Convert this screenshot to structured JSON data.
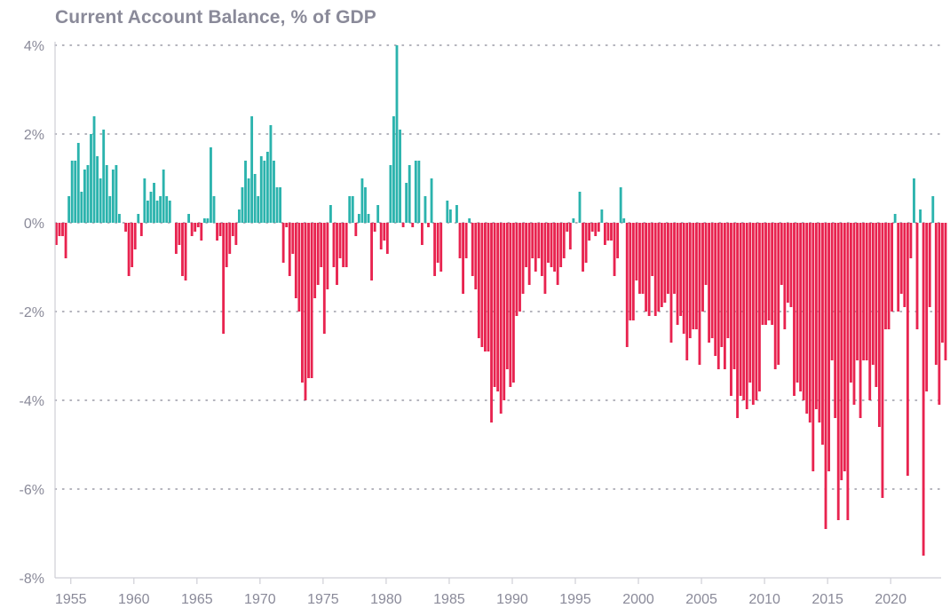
{
  "chart_data": {
    "type": "bar",
    "title": "Current Account Balance, % of GDP",
    "xlabel": "",
    "ylabel": "",
    "x_tick_labels": [
      "1955",
      "1960",
      "1965",
      "1970",
      "1975",
      "1980",
      "1985",
      "1990",
      "1995",
      "2000",
      "2005",
      "2010",
      "2015",
      "2020"
    ],
    "y_tick_labels": [
      "4%",
      "2%",
      "0%",
      "-2%",
      "-4%",
      "-6%",
      "-8%"
    ],
    "y_ticks": [
      4,
      2,
      0,
      -2,
      -4,
      -6,
      -8
    ],
    "ylim": [
      -8,
      4
    ],
    "xlim": [
      1953.75,
      2024.0
    ],
    "grid": "horizontal dotted",
    "legend": "none",
    "colors": {
      "positive": "#2bb3ad",
      "negative": "#e8234f",
      "axis": "#cfcfd6",
      "text": "#8a8a99"
    },
    "series": [
      {
        "frequency": "quarterly",
        "start": "1953 Q4",
        "values": [
          -0.5,
          -0.3,
          -0.3,
          -0.8,
          0.6,
          1.4,
          1.4,
          1.8,
          0.7,
          1.2,
          1.3,
          2.0,
          2.4,
          1.5,
          1.0,
          2.1,
          1.3,
          0.6,
          1.2,
          1.3,
          0.2,
          0,
          -0.2,
          -1.2,
          -1.0,
          -0.6,
          0.2,
          -0.3,
          1.0,
          0.5,
          0.7,
          0.9,
          0.5,
          0.6,
          1.2,
          0.6,
          0.5,
          0,
          -0.7,
          -0.5,
          -1.2,
          -1.3,
          0.2,
          -0.3,
          -0.2,
          -0.1,
          -0.4,
          0.1,
          0.1,
          1.7,
          0.6,
          -0.4,
          -0.3,
          -2.5,
          -1.0,
          -0.7,
          -0.3,
          -0.5,
          0.3,
          0.8,
          1.4,
          1.0,
          2.4,
          1.1,
          0.6,
          1.5,
          1.4,
          1.6,
          2.2,
          1.4,
          0.8,
          0.8,
          -0.9,
          -0.1,
          -1.2,
          -0.7,
          -1.7,
          -2.0,
          -3.6,
          -4.0,
          -3.5,
          -3.5,
          -1.7,
          -1.4,
          -1.0,
          -2.5,
          -1.5,
          0.4,
          -1.0,
          -1.4,
          -0.8,
          -1.0,
          -1.0,
          0.6,
          0.6,
          -0.3,
          0.2,
          1.0,
          0.8,
          0.2,
          -1.3,
          -0.2,
          0.4,
          -0.6,
          -0.4,
          -0.7,
          1.3,
          2.4,
          4.0,
          2.1,
          -0.1,
          0.9,
          1.3,
          -0.1,
          1.4,
          1.4,
          -0.5,
          0.6,
          -0.1,
          1.0,
          -1.2,
          -0.9,
          -1.1,
          0,
          0.5,
          0.3,
          0,
          0.4,
          -0.8,
          -1.6,
          -0.8,
          0.1,
          -1.2,
          -1.5,
          -2.6,
          -2.8,
          -2.9,
          -2.9,
          -4.5,
          -3.7,
          -3.8,
          -4.3,
          -4.0,
          -3.3,
          -3.7,
          -3.6,
          -2.1,
          -2.0,
          -1.6,
          -1.0,
          -1.4,
          -0.8,
          -1.1,
          -0.8,
          -1.2,
          -1.6,
          -0.9,
          -1.0,
          -1.1,
          -1.4,
          -1.0,
          -0.8,
          -0.2,
          -0.6,
          0.1,
          0,
          0.7,
          -1.1,
          -0.9,
          -0.4,
          -0.2,
          -0.3,
          -0.2,
          0.3,
          -0.5,
          -0.4,
          -0.4,
          -1.2,
          -0.8,
          0.8,
          0.1,
          -2.8,
          -2.2,
          -2.2,
          -1.3,
          -1.6,
          -1.6,
          -2.0,
          -2.1,
          -1.2,
          -2.1,
          -2.0,
          -1.9,
          -1.8,
          -1.6,
          -2.7,
          -1.6,
          -2.3,
          -2.1,
          -2.5,
          -3.1,
          -2.6,
          -2.4,
          -2.4,
          -3.2,
          -2.0,
          -1.4,
          -2.7,
          -2.6,
          -3.0,
          -3.3,
          -2.8,
          -3.3,
          -2.6,
          -3.9,
          -3.3,
          -4.4,
          -3.9,
          -4.0,
          -4.2,
          -3.6,
          -4.1,
          -4.0,
          -3.8,
          -2.3,
          -2.3,
          -2.2,
          -2.3,
          -3.3,
          -3.2,
          -1.4,
          -2.4,
          -1.8,
          -1.9,
          -3.9,
          -3.6,
          -3.8,
          -4.0,
          -4.3,
          -4.5,
          -5.6,
          -4.2,
          -4.5,
          -5.0,
          -6.9,
          -5.6,
          -3.1,
          -4.4,
          -6.7,
          -5.8,
          -5.6,
          -6.7,
          -3.6,
          -4.1,
          -3.1,
          -4.4,
          -3.1,
          -3.1,
          -4.0,
          -3.2,
          -3.7,
          -4.6,
          -6.2,
          -2.4,
          -2.4,
          -2.0,
          0.2,
          -2.0,
          -1.6,
          -1.9,
          -5.7,
          -0.8,
          1.0,
          -2.4,
          0.3,
          -7.5,
          -3.8,
          -1.9,
          0.6,
          -3.2,
          -4.1,
          -2.7,
          -3.1
        ]
      }
    ]
  }
}
